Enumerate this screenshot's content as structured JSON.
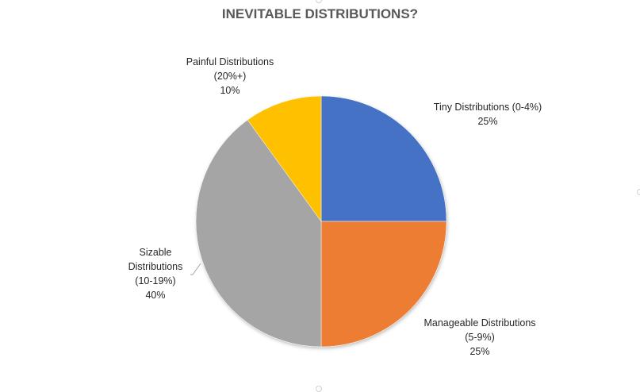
{
  "chart_data": {
    "type": "pie",
    "title": "INEVITABLE DISTRIBUTIONS?",
    "slices": [
      {
        "label_lines": [
          "Tiny Distributions (0-4%)"
        ],
        "value_text": "25%",
        "value": 25,
        "color": "#4472C4"
      },
      {
        "label_lines": [
          "Manageable Distributions",
          "(5-9%)"
        ],
        "value_text": "25%",
        "value": 25,
        "color": "#ED7D31"
      },
      {
        "label_lines": [
          "Sizable",
          "Distributions",
          "(10-19%)"
        ],
        "value_text": "40%",
        "value": 40,
        "color": "#A5A5A5"
      },
      {
        "label_lines": [
          "Painful Distributions",
          "(20%+)"
        ],
        "value_text": "10%",
        "value": 10,
        "color": "#FFC000"
      }
    ]
  }
}
